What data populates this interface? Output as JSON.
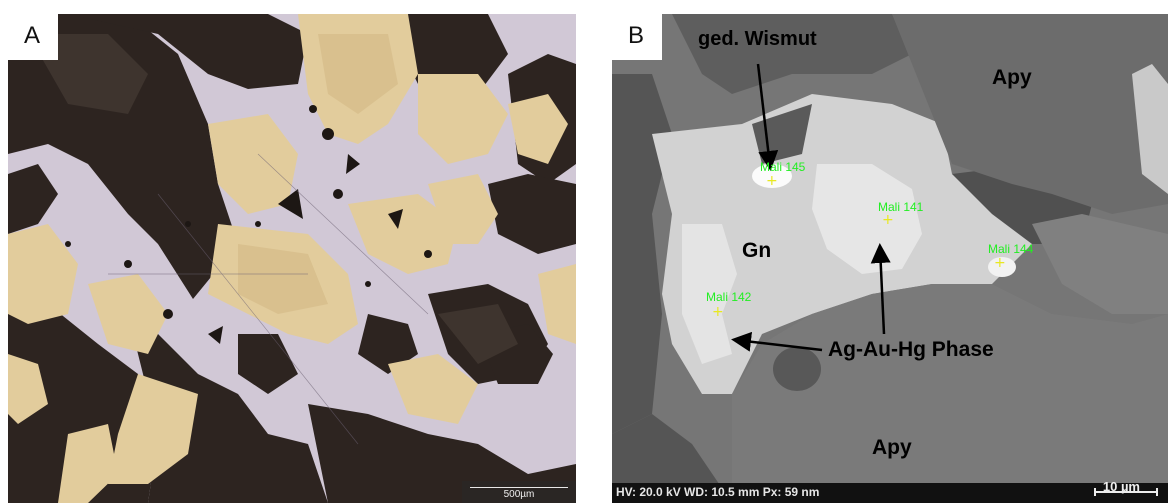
{
  "panel_a": {
    "label": "A",
    "scale_bar": "500µm"
  },
  "panel_b": {
    "label": "B",
    "annotations": {
      "wismut": "ged. Wismut",
      "apy_top": "Apy",
      "gn": "Gn",
      "phase": "Ag-Au-Hg Phase",
      "apy_bottom": "Apy"
    },
    "spots": [
      "Mali 145",
      "Mali 141",
      "Mali 144",
      "Mali 142"
    ],
    "footer": {
      "info": "HV: 20.0 kV   WD: 10.5 mm   Px: 59 nm",
      "scale": "10 µm"
    }
  }
}
